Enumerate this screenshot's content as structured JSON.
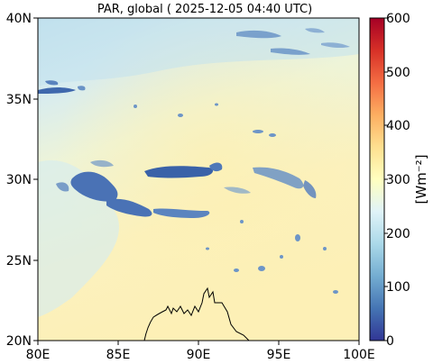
{
  "title": "PAR, global ( 2025-12-05 04:40 UTC)",
  "axes": {
    "x_ticks": [
      "80E",
      "85E",
      "90E",
      "95E",
      "100E"
    ],
    "y_ticks": [
      "40N",
      "35N",
      "30N",
      "25N",
      "20N"
    ],
    "lon_range": [
      80,
      100
    ],
    "lat_range": [
      20,
      40
    ]
  },
  "colorbar": {
    "label": "[Wm⁻²]",
    "ticks": [
      "600",
      "500",
      "400",
      "300",
      "200",
      "100",
      "0"
    ],
    "range": [
      0,
      600
    ],
    "colormap": "RdYlBu_r"
  },
  "colors": {
    "field_north": "#c9e4f0",
    "field_mid": "#eef4d6",
    "field_south": "#fdf1b8",
    "cloud_dark": "#3f68ad",
    "cloud_mid": "#6d95c7",
    "coastline": "#000000"
  }
}
